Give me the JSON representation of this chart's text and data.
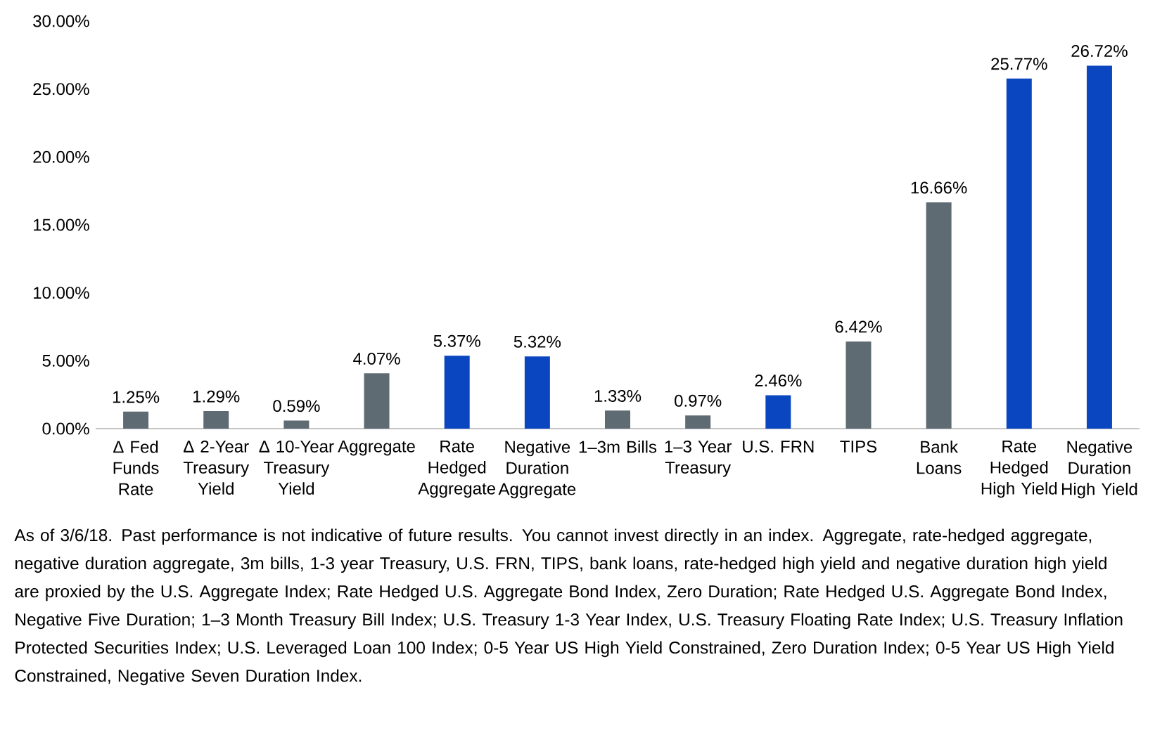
{
  "chart_data": {
    "type": "bar",
    "categories": [
      "Δ Fed Funds Rate",
      "Δ 2-Year Treasury Yield",
      "Δ 10-Year Treasury Yield",
      "Aggregate",
      "Rate Hedged Aggregate",
      "Negative Duration Aggregate",
      "1–3m Bills",
      "1–3 Year Treasury",
      "U.S. FRN",
      "TIPS",
      "Bank Loans",
      "Rate Hedged High Yield",
      "Negative Duration High Yield"
    ],
    "values": [
      1.25,
      1.29,
      0.59,
      4.07,
      5.37,
      5.32,
      1.33,
      0.97,
      2.46,
      6.42,
      16.66,
      25.77,
      26.72
    ],
    "colors": [
      "#5f6b73",
      "#5f6b73",
      "#5f6b73",
      "#5f6b73",
      "#0a46c0",
      "#0a46c0",
      "#5f6b73",
      "#5f6b73",
      "#0a46c0",
      "#5f6b73",
      "#5f6b73",
      "#0a46c0",
      "#0a46c0"
    ],
    "value_labels": [
      "1.25%",
      "1.29%",
      "0.59%",
      "4.07%",
      "5.37%",
      "5.32%",
      "1.33%",
      "0.97%",
      "2.46%",
      "6.42%",
      "16.66%",
      "25.77%",
      "26.72%"
    ],
    "ylim": [
      0,
      30
    ],
    "yticks": [
      {
        "value": 0,
        "label": "0.00%"
      },
      {
        "value": 5,
        "label": "5.00%"
      },
      {
        "value": 10,
        "label": "10.00%"
      },
      {
        "value": 15,
        "label": "15.00%"
      },
      {
        "value": 20,
        "label": "20.00%"
      },
      {
        "value": 25,
        "label": "25.00%"
      },
      {
        "value": 30,
        "label": "30.00%"
      }
    ],
    "annotations": [
      "As of 3/6/18. Past performance is not indicative of future results. You cannot invest directly in an index. Aggregate, rate-hedged aggregate, negative duration aggregate, 3m bills, 1-3 year Treasury, U.S. FRN, TIPS, bank loans, rate-hedged high yield and negative duration high yield are proxied by the U.S. Aggregate Index; Rate Hedged U.S. Aggregate Bond Index, Zero Duration; Rate Hedged U.S. Aggregate Bond Index, Negative Five Duration; 1–3 Month Treasury Bill Index; U.S. Treasury 1-3 Year Index, U.S. Treasury Floating Rate Index; U.S. Treasury Inflation Protected Securities Index; U.S. Leveraged Loan 100 Index; 0-5 Year US High Yield Constrained, Zero Duration Index; 0-5 Year US High Yield Constrained, Negative Seven Duration Index."
    ]
  }
}
